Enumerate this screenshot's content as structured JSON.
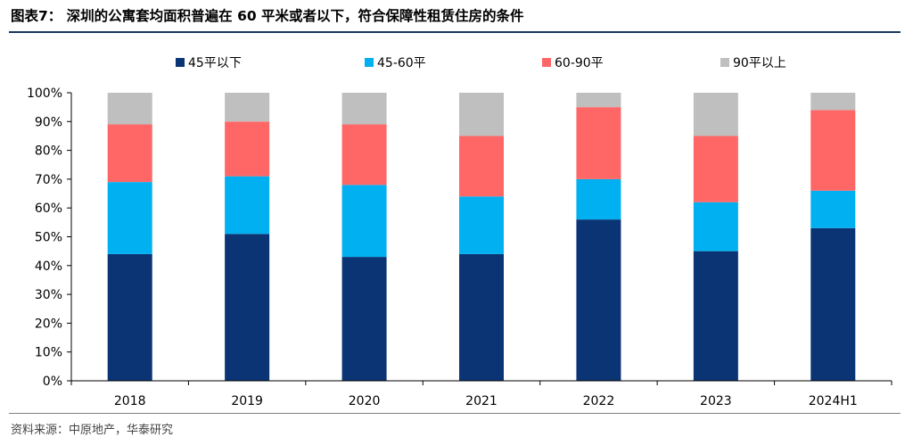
{
  "title": "图表7：  深圳的公寓套均面积普遍在 60 平米或者以下，符合保障性租赁住房的条件",
  "source": "资料来源：中原地产，华泰研究",
  "chart_data": {
    "type": "bar",
    "stacked": true,
    "percent": true,
    "categories": [
      "2018",
      "2019",
      "2020",
      "2021",
      "2022",
      "2023",
      "2024H1"
    ],
    "series": [
      {
        "name": "45平以下",
        "color": "#0b3474",
        "values": [
          44,
          51,
          43,
          44,
          56,
          45,
          53
        ]
      },
      {
        "name": "45-60平",
        "color": "#00b0f0",
        "values": [
          25,
          20,
          25,
          20,
          14,
          17,
          13
        ]
      },
      {
        "name": "60-90平",
        "color": "#ff6666",
        "values": [
          20,
          19,
          21,
          21,
          25,
          23,
          28
        ]
      },
      {
        "name": "90平以上",
        "color": "#bfbfbf",
        "values": [
          11,
          10,
          11,
          15,
          5,
          15,
          6
        ]
      }
    ],
    "ylim": [
      0,
      100
    ],
    "yticks": [
      "0%",
      "10%",
      "20%",
      "30%",
      "40%",
      "50%",
      "60%",
      "70%",
      "80%",
      "90%",
      "100%"
    ],
    "legend_position": "top",
    "grid": false
  }
}
